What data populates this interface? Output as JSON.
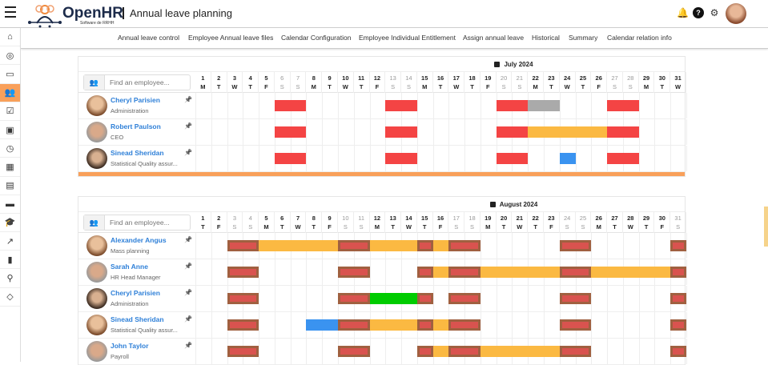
{
  "header": {
    "brand": "OpenHR",
    "brand_sub": "Software de RRHH",
    "title": "Annual leave planning",
    "icons": [
      "bell-icon",
      "help-icon",
      "gear-icon",
      "user-avatar"
    ]
  },
  "sidebar": {
    "items": [
      "home-icon",
      "user-circle-icon",
      "messages-icon",
      "team-icon",
      "checklist-icon",
      "payroll-icon",
      "timer-icon",
      "calendar-icon",
      "document-icon",
      "printer-icon",
      "training-icon",
      "trend-icon",
      "stats-icon",
      "user-search-icon",
      "target-icon"
    ],
    "active": 3
  },
  "nav": [
    "Annual leave control",
    "Employee Annual leave files",
    "Calendar Configuration",
    "Employee Individual Entitlement",
    "Assign annual leave",
    "Historical",
    "Summary",
    "Calendar relation info"
  ],
  "colors": {
    "holiday": "#f44444",
    "holiday_aug": "#d9534f",
    "pending": "#aaaaaa",
    "leave": "#fbb942",
    "blue": "#3a93f0",
    "green": "#00cc00",
    "accent": "#f9a05a"
  },
  "calendars": [
    {
      "title": "July 2024",
      "search_placeholder": "Find an employee...",
      "days": [
        "M",
        "T",
        "W",
        "T",
        "F",
        "S",
        "S",
        "M",
        "T",
        "W",
        "T",
        "F",
        "S",
        "S",
        "M",
        "T",
        "W",
        "T",
        "F",
        "S",
        "S",
        "M",
        "T",
        "W",
        "T",
        "F",
        "S",
        "S",
        "M",
        "T",
        "W"
      ],
      "employees": [
        {
          "name": "Cheryl Parisien",
          "role": "Administration",
          "bars": [
            [
              6,
              7,
              "holiday"
            ],
            [
              13,
              14,
              "holiday"
            ],
            [
              20,
              21,
              "holiday"
            ],
            [
              22,
              23,
              "pending"
            ],
            [
              27,
              28,
              "holiday"
            ]
          ]
        },
        {
          "name": "Robert Paulson",
          "role": "CEO",
          "bars": [
            [
              6,
              7,
              "holiday"
            ],
            [
              13,
              14,
              "holiday"
            ],
            [
              20,
              21,
              "holiday"
            ],
            [
              22,
              26,
              "leave"
            ],
            [
              27,
              28,
              "holiday"
            ]
          ]
        },
        {
          "name": "Sinead Sheridan",
          "role": "Statistical Quality assur...",
          "bars": [
            [
              6,
              7,
              "holiday"
            ],
            [
              13,
              14,
              "holiday"
            ],
            [
              20,
              21,
              "holiday"
            ],
            [
              24,
              24,
              "blue"
            ],
            [
              27,
              28,
              "holiday"
            ]
          ]
        }
      ]
    },
    {
      "title": "August 2024",
      "search_placeholder": "Find an employee...",
      "days": [
        "T",
        "F",
        "S",
        "S",
        "M",
        "T",
        "W",
        "T",
        "F",
        "S",
        "S",
        "M",
        "T",
        "W",
        "T",
        "F",
        "S",
        "S",
        "M",
        "T",
        "W",
        "T",
        "F",
        "S",
        "S",
        "M",
        "T",
        "W",
        "T",
        "F",
        "S"
      ],
      "employees": [
        {
          "name": "Alexander Angus",
          "role": "Mass planning",
          "bars": [
            [
              3,
              4,
              "holiday_aug"
            ],
            [
              5,
              9,
              "leave"
            ],
            [
              10,
              11,
              "holiday_aug"
            ],
            [
              12,
              14,
              "leave"
            ],
            [
              15,
              15,
              "holiday_aug"
            ],
            [
              16,
              16,
              "leave"
            ],
            [
              17,
              18,
              "holiday_aug"
            ],
            [
              24,
              25,
              "holiday_aug"
            ],
            [
              31,
              31,
              "holiday_aug"
            ]
          ]
        },
        {
          "name": "Sarah Anne",
          "role": "HR Head Manager",
          "bars": [
            [
              3,
              4,
              "holiday_aug"
            ],
            [
              10,
              11,
              "holiday_aug"
            ],
            [
              15,
              15,
              "holiday_aug"
            ],
            [
              16,
              16,
              "leave"
            ],
            [
              17,
              18,
              "holiday_aug"
            ],
            [
              19,
              23,
              "leave"
            ],
            [
              24,
              25,
              "holiday_aug"
            ],
            [
              26,
              30,
              "leave"
            ],
            [
              31,
              31,
              "holiday_aug"
            ]
          ]
        },
        {
          "name": "Cheryl Parisien",
          "role": "Administration",
          "bars": [
            [
              3,
              4,
              "holiday_aug"
            ],
            [
              10,
              11,
              "holiday_aug"
            ],
            [
              12,
              14,
              "green"
            ],
            [
              15,
              15,
              "holiday_aug"
            ],
            [
              17,
              18,
              "holiday_aug"
            ],
            [
              24,
              25,
              "holiday_aug"
            ],
            [
              31,
              31,
              "holiday_aug"
            ]
          ]
        },
        {
          "name": "Sinead Sheridan",
          "role": "Statistical Quality assur...",
          "bars": [
            [
              3,
              4,
              "holiday_aug"
            ],
            [
              8,
              9,
              "blue"
            ],
            [
              10,
              11,
              "holiday_aug"
            ],
            [
              12,
              14,
              "leave"
            ],
            [
              15,
              15,
              "holiday_aug"
            ],
            [
              16,
              16,
              "leave"
            ],
            [
              17,
              18,
              "holiday_aug"
            ],
            [
              24,
              25,
              "holiday_aug"
            ],
            [
              31,
              31,
              "holiday_aug"
            ]
          ]
        },
        {
          "name": "John Taylor",
          "role": "Payroll",
          "bars": [
            [
              3,
              4,
              "holiday_aug"
            ],
            [
              10,
              11,
              "holiday_aug"
            ],
            [
              15,
              15,
              "holiday_aug"
            ],
            [
              16,
              16,
              "leave"
            ],
            [
              17,
              18,
              "holiday_aug"
            ],
            [
              19,
              23,
              "leave"
            ],
            [
              24,
              25,
              "holiday_aug"
            ],
            [
              31,
              31,
              "holiday_aug"
            ]
          ]
        }
      ]
    }
  ]
}
